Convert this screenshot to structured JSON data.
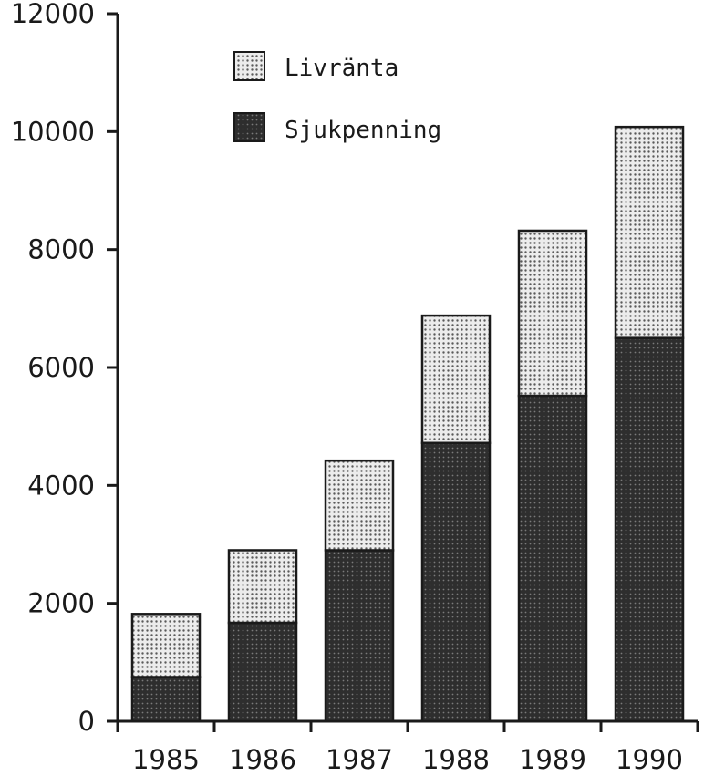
{
  "chart_data": {
    "type": "bar",
    "stacked": true,
    "categories": [
      "1985",
      "1986",
      "1987",
      "1988",
      "1989",
      "1990"
    ],
    "series": [
      {
        "name": "Sjukpenning",
        "values": [
          750,
          1670,
          2900,
          4720,
          5520,
          6500
        ],
        "pattern": "dense-dots"
      },
      {
        "name": "Livränta",
        "values": [
          1070,
          1230,
          1520,
          2160,
          2800,
          3580
        ],
        "pattern": "light-dots"
      }
    ],
    "ylim": [
      0,
      12000
    ],
    "yticks": [
      "0",
      "2000",
      "4000",
      "6000",
      "8000",
      "10000",
      "12000"
    ],
    "legend_position": "top-left",
    "grid": false,
    "colors": {
      "dark_fill": "#2e2e2e",
      "light_fill": "#e6e6e6",
      "ink": "#1a1a1a"
    }
  },
  "legend": {
    "items": [
      {
        "label": "Livränta",
        "series": 1
      },
      {
        "label": "Sjukpenning",
        "series": 0
      }
    ]
  }
}
